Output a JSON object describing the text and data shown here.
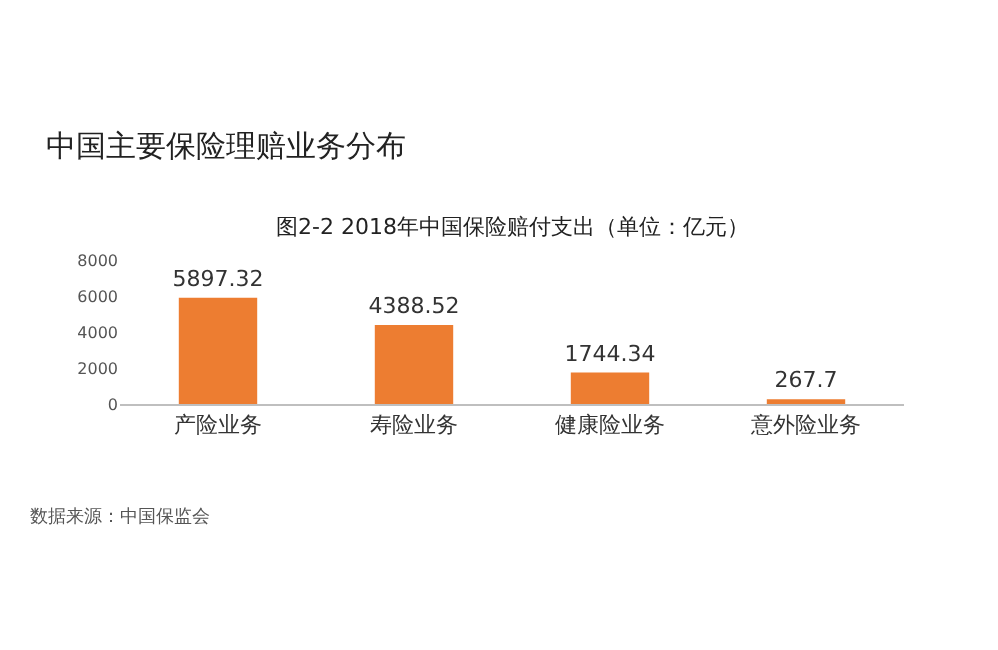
{
  "chart_data": {
    "type": "bar",
    "title": "中国主要保险理赔业务分布",
    "subtitle": "图2-2 2018年中国保险赔付支出（单位：亿元）",
    "categories": [
      "产险业务",
      "寿险业务",
      "健康险业务",
      "意外险业务"
    ],
    "values": [
      5897.32,
      4388.52,
      1744.34,
      267.7
    ],
    "color": "#ed7d31",
    "ylim": [
      0,
      8000
    ],
    "yticks": [
      0,
      2000,
      4000,
      6000,
      8000
    ],
    "grid": false,
    "data_labels": true,
    "annotations": [
      "数据来源：中国保监会"
    ]
  }
}
